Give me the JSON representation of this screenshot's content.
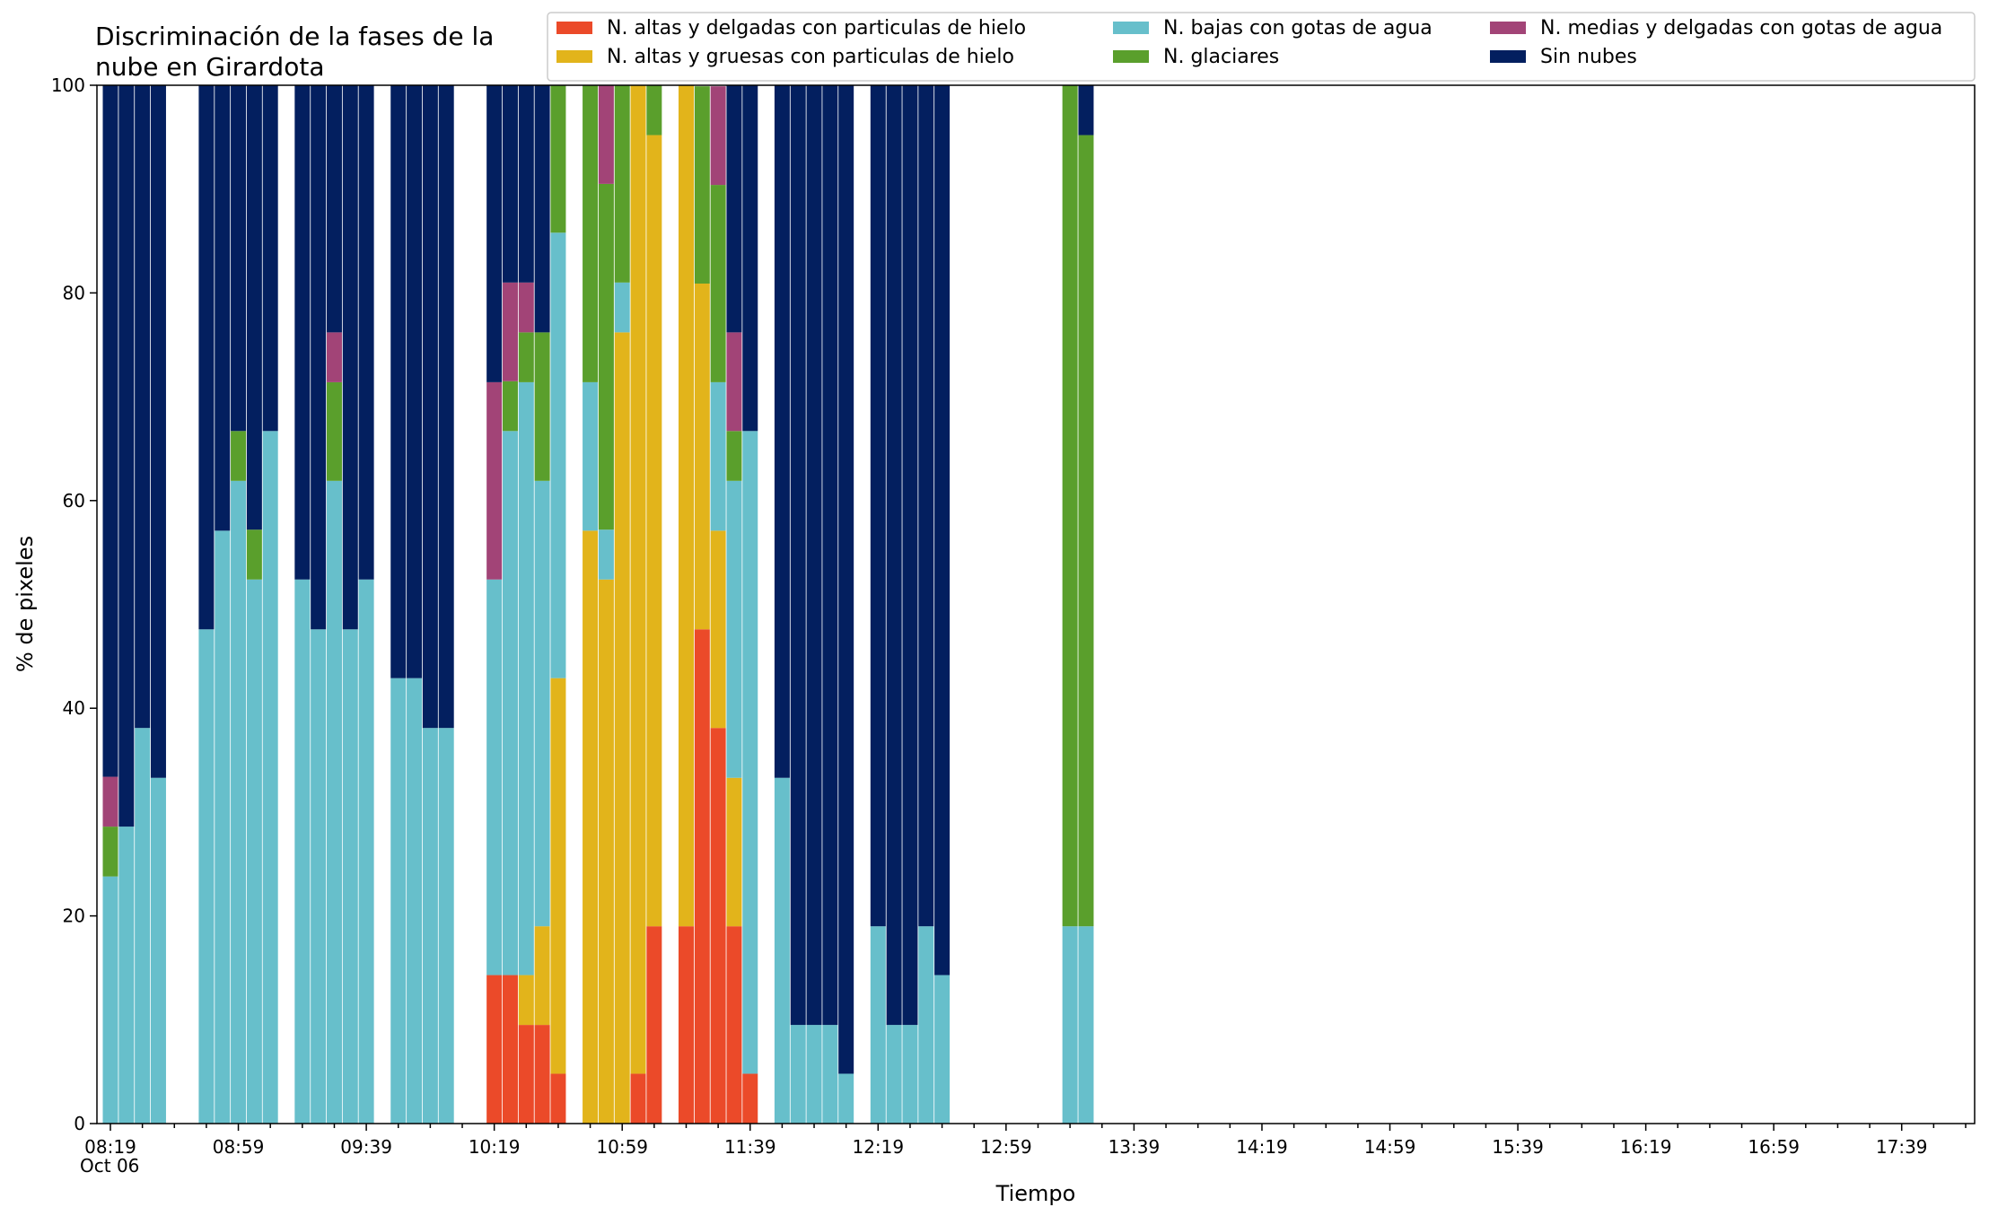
{
  "chart_data": {
    "type": "bar",
    "stacked": true,
    "title": "Discriminación de la fases de la nube en Girardota",
    "title_lines": [
      "Discriminación de la fases de la",
      "nube en Girardota"
    ],
    "xlabel": "Tiempo",
    "ylabel": "% de pixeles",
    "ylim": [
      0,
      100
    ],
    "yticks": [
      0,
      20,
      40,
      60,
      80,
      100
    ],
    "x_start": "08:19",
    "x_end": "17:59",
    "x_step_minutes": 10,
    "x_tick_labels": [
      "08:19",
      "08:59",
      "09:39",
      "10:19",
      "10:59",
      "11:39",
      "12:19",
      "12:59",
      "13:39",
      "14:19",
      "14:59",
      "15:39",
      "16:19",
      "16:59",
      "17:39"
    ],
    "x_date_label": "Oct 06",
    "grid": false,
    "legend_position": "top-right",
    "legend_columns": 3,
    "colors": {
      "altas_delgadas": "#EB4A29",
      "altas_gruesas": "#E2B41B",
      "bajas_agua": "#67BFCB",
      "glaciares": "#5A9F2C",
      "medias_agua": "#A24477",
      "sin_nubes": "#031F5F"
    },
    "series": [
      {
        "key": "altas_delgadas",
        "name": "N. altas y delgadas con particulas de hielo"
      },
      {
        "key": "altas_gruesas",
        "name": "N. altas y gruesas con particulas de hielo"
      },
      {
        "key": "bajas_agua",
        "name": "N. bajas con gotas de agua"
      },
      {
        "key": "glaciares",
        "name": "N. glaciares"
      },
      {
        "key": "medias_agua",
        "name": "N. medias y delgadas con gotas de agua"
      },
      {
        "key": "sin_nubes",
        "name": "Sin nubes"
      }
    ],
    "bars": [
      {
        "time": "08:19",
        "altas_delgadas": 0,
        "altas_gruesas": 0,
        "bajas_agua": 23.8,
        "glaciares": 4.8,
        "medias_agua": 4.8,
        "sin_nubes": 66.7
      },
      {
        "time": "08:24",
        "altas_delgadas": 0,
        "altas_gruesas": 0,
        "bajas_agua": 28.6,
        "glaciares": 0,
        "medias_agua": 0,
        "sin_nubes": 71.4
      },
      {
        "time": "08:29",
        "altas_delgadas": 0,
        "altas_gruesas": 0,
        "bajas_agua": 38.1,
        "glaciares": 0,
        "medias_agua": 0,
        "sin_nubes": 61.9
      },
      {
        "time": "08:34",
        "altas_delgadas": 0,
        "altas_gruesas": 0,
        "bajas_agua": 33.3,
        "glaciares": 0,
        "medias_agua": 0,
        "sin_nubes": 66.7
      },
      {
        "time": "08:49",
        "altas_delgadas": 0,
        "altas_gruesas": 0,
        "bajas_agua": 47.6,
        "glaciares": 0,
        "medias_agua": 0,
        "sin_nubes": 52.4
      },
      {
        "time": "08:54",
        "altas_delgadas": 0,
        "altas_gruesas": 0,
        "bajas_agua": 57.1,
        "glaciares": 0,
        "medias_agua": 0,
        "sin_nubes": 42.9
      },
      {
        "time": "08:59",
        "altas_delgadas": 0,
        "altas_gruesas": 0,
        "bajas_agua": 61.9,
        "glaciares": 4.8,
        "medias_agua": 0,
        "sin_nubes": 33.3
      },
      {
        "time": "09:04",
        "altas_delgadas": 0,
        "altas_gruesas": 0,
        "bajas_agua": 52.4,
        "glaciares": 4.8,
        "medias_agua": 0,
        "sin_nubes": 42.9
      },
      {
        "time": "09:09",
        "altas_delgadas": 0,
        "altas_gruesas": 0,
        "bajas_agua": 66.7,
        "glaciares": 0,
        "medias_agua": 0,
        "sin_nubes": 33.3
      },
      {
        "time": "09:19",
        "altas_delgadas": 0,
        "altas_gruesas": 0,
        "bajas_agua": 52.4,
        "glaciares": 0,
        "medias_agua": 0,
        "sin_nubes": 47.6
      },
      {
        "time": "09:24",
        "altas_delgadas": 0,
        "altas_gruesas": 0,
        "bajas_agua": 47.6,
        "glaciares": 0,
        "medias_agua": 0,
        "sin_nubes": 52.4
      },
      {
        "time": "09:29",
        "altas_delgadas": 0,
        "altas_gruesas": 0,
        "bajas_agua": 61.9,
        "glaciares": 9.5,
        "medias_agua": 4.8,
        "sin_nubes": 23.8
      },
      {
        "time": "09:34",
        "altas_delgadas": 0,
        "altas_gruesas": 0,
        "bajas_agua": 47.6,
        "glaciares": 0,
        "medias_agua": 0,
        "sin_nubes": 52.4
      },
      {
        "time": "09:39",
        "altas_delgadas": 0,
        "altas_gruesas": 0,
        "bajas_agua": 52.4,
        "glaciares": 0,
        "medias_agua": 0,
        "sin_nubes": 47.6
      },
      {
        "time": "09:49",
        "altas_delgadas": 0,
        "altas_gruesas": 0,
        "bajas_agua": 42.9,
        "glaciares": 0,
        "medias_agua": 0,
        "sin_nubes": 57.1
      },
      {
        "time": "09:54",
        "altas_delgadas": 0,
        "altas_gruesas": 0,
        "bajas_agua": 42.9,
        "glaciares": 0,
        "medias_agua": 0,
        "sin_nubes": 57.1
      },
      {
        "time": "09:59",
        "altas_delgadas": 0,
        "altas_gruesas": 0,
        "bajas_agua": 38.1,
        "glaciares": 0,
        "medias_agua": 0,
        "sin_nubes": 61.9
      },
      {
        "time": "10:04",
        "altas_delgadas": 0,
        "altas_gruesas": 0,
        "bajas_agua": 38.1,
        "glaciares": 0,
        "medias_agua": 0,
        "sin_nubes": 61.9
      },
      {
        "time": "10:19",
        "altas_delgadas": 14.3,
        "altas_gruesas": 0,
        "bajas_agua": 38.1,
        "glaciares": 0,
        "medias_agua": 19.0,
        "sin_nubes": 28.6
      },
      {
        "time": "10:24",
        "altas_delgadas": 14.3,
        "altas_gruesas": 0,
        "bajas_agua": 52.4,
        "glaciares": 4.8,
        "medias_agua": 9.5,
        "sin_nubes": 19.0
      },
      {
        "time": "10:29",
        "altas_delgadas": 9.5,
        "altas_gruesas": 4.8,
        "bajas_agua": 57.1,
        "glaciares": 4.8,
        "medias_agua": 4.8,
        "sin_nubes": 19.0
      },
      {
        "time": "10:34",
        "altas_delgadas": 9.5,
        "altas_gruesas": 9.5,
        "bajas_agua": 42.9,
        "glaciares": 14.3,
        "medias_agua": 0,
        "sin_nubes": 23.8
      },
      {
        "time": "10:39",
        "altas_delgadas": 4.8,
        "altas_gruesas": 38.1,
        "bajas_agua": 42.9,
        "glaciares": 14.3,
        "medias_agua": 0,
        "sin_nubes": 0
      },
      {
        "time": "10:49",
        "altas_delgadas": 0,
        "altas_gruesas": 57.1,
        "bajas_agua": 14.3,
        "glaciares": 28.6,
        "medias_agua": 0,
        "sin_nubes": 0
      },
      {
        "time": "10:54",
        "altas_delgadas": 0,
        "altas_gruesas": 52.4,
        "bajas_agua": 4.8,
        "glaciares": 33.3,
        "medias_agua": 9.5,
        "sin_nubes": 0
      },
      {
        "time": "10:59",
        "altas_delgadas": 0,
        "altas_gruesas": 76.2,
        "bajas_agua": 4.8,
        "glaciares": 19.0,
        "medias_agua": 0,
        "sin_nubes": 0
      },
      {
        "time": "11:04",
        "altas_delgadas": 4.8,
        "altas_gruesas": 95.2,
        "bajas_agua": 0,
        "glaciares": 0,
        "medias_agua": 0,
        "sin_nubes": 0
      },
      {
        "time": "11:09",
        "altas_delgadas": 19.0,
        "altas_gruesas": 76.2,
        "bajas_agua": 0,
        "glaciares": 4.8,
        "medias_agua": 0,
        "sin_nubes": 0
      },
      {
        "time": "11:19",
        "altas_delgadas": 19.0,
        "altas_gruesas": 81.0,
        "bajas_agua": 0,
        "glaciares": 0,
        "medias_agua": 0,
        "sin_nubes": 0
      },
      {
        "time": "11:24",
        "altas_delgadas": 47.6,
        "altas_gruesas": 33.3,
        "bajas_agua": 0,
        "glaciares": 19.0,
        "medias_agua": 0,
        "sin_nubes": 0
      },
      {
        "time": "11:29",
        "altas_delgadas": 38.1,
        "altas_gruesas": 19.0,
        "bajas_agua": 14.3,
        "glaciares": 19.0,
        "medias_agua": 9.5,
        "sin_nubes": 0
      },
      {
        "time": "11:34",
        "altas_delgadas": 19.0,
        "altas_gruesas": 14.3,
        "bajas_agua": 28.6,
        "glaciares": 4.8,
        "medias_agua": 9.5,
        "sin_nubes": 23.8
      },
      {
        "time": "11:39",
        "altas_delgadas": 4.8,
        "altas_gruesas": 0,
        "bajas_agua": 61.9,
        "glaciares": 0,
        "medias_agua": 0,
        "sin_nubes": 33.3
      },
      {
        "time": "11:49",
        "altas_delgadas": 0,
        "altas_gruesas": 0,
        "bajas_agua": 33.3,
        "glaciares": 0,
        "medias_agua": 0,
        "sin_nubes": 66.7
      },
      {
        "time": "11:54",
        "altas_delgadas": 0,
        "altas_gruesas": 0,
        "bajas_agua": 9.5,
        "glaciares": 0,
        "medias_agua": 0,
        "sin_nubes": 90.5
      },
      {
        "time": "11:59",
        "altas_delgadas": 0,
        "altas_gruesas": 0,
        "bajas_agua": 9.5,
        "glaciares": 0,
        "medias_agua": 0,
        "sin_nubes": 90.5
      },
      {
        "time": "12:04",
        "altas_delgadas": 0,
        "altas_gruesas": 0,
        "bajas_agua": 9.5,
        "glaciares": 0,
        "medias_agua": 0,
        "sin_nubes": 90.5
      },
      {
        "time": "12:09",
        "altas_delgadas": 0,
        "altas_gruesas": 0,
        "bajas_agua": 4.8,
        "glaciares": 0,
        "medias_agua": 0,
        "sin_nubes": 95.2
      },
      {
        "time": "12:19",
        "altas_delgadas": 0,
        "altas_gruesas": 0,
        "bajas_agua": 19.0,
        "glaciares": 0,
        "medias_agua": 0,
        "sin_nubes": 81.0
      },
      {
        "time": "12:24",
        "altas_delgadas": 0,
        "altas_gruesas": 0,
        "bajas_agua": 9.5,
        "glaciares": 0,
        "medias_agua": 0,
        "sin_nubes": 90.5
      },
      {
        "time": "12:29",
        "altas_delgadas": 0,
        "altas_gruesas": 0,
        "bajas_agua": 9.5,
        "glaciares": 0,
        "medias_agua": 0,
        "sin_nubes": 90.5
      },
      {
        "time": "12:34",
        "altas_delgadas": 0,
        "altas_gruesas": 0,
        "bajas_agua": 19.0,
        "glaciares": 0,
        "medias_agua": 0,
        "sin_nubes": 81.0
      },
      {
        "time": "12:39",
        "altas_delgadas": 0,
        "altas_gruesas": 0,
        "bajas_agua": 14.3,
        "glaciares": 0,
        "medias_agua": 0,
        "sin_nubes": 85.7
      },
      {
        "time": "13:19",
        "altas_delgadas": 0,
        "altas_gruesas": 0,
        "bajas_agua": 19.0,
        "glaciares": 81.0,
        "medias_agua": 0,
        "sin_nubes": 0
      },
      {
        "time": "13:24",
        "altas_delgadas": 0,
        "altas_gruesas": 0,
        "bajas_agua": 19.0,
        "glaciares": 76.2,
        "medias_agua": 0,
        "sin_nubes": 4.8
      }
    ]
  }
}
